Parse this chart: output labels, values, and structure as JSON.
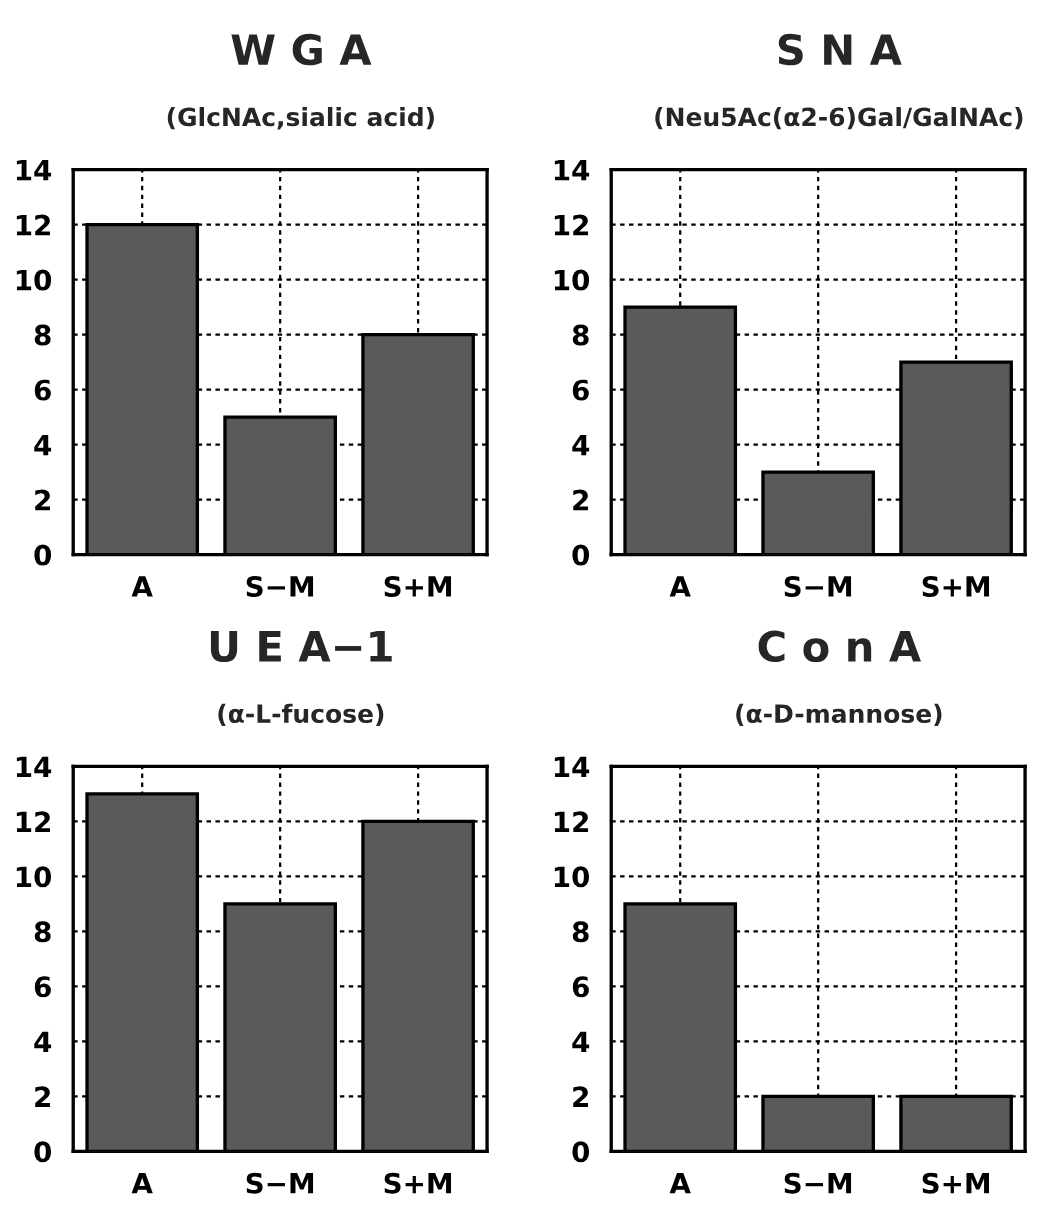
{
  "chart_data": [
    {
      "type": "bar",
      "title": "W G A",
      "subtitle": "(GlcNAc,sialic acid)",
      "categories": [
        "A",
        "S−M",
        "S+M"
      ],
      "values": [
        12,
        5,
        8
      ],
      "color": "#5a5a5a",
      "ylim": [
        0,
        14
      ],
      "yticks": [
        0,
        2,
        4,
        6,
        8,
        10,
        12,
        14
      ],
      "grid": true
    },
    {
      "type": "bar",
      "title": "S N A",
      "subtitle": "(Neu5Ac(α2-6)Gal/GalNAc)",
      "categories": [
        "A",
        "S−M",
        "S+M"
      ],
      "values": [
        9,
        3,
        7
      ],
      "color": "#5a5a5a",
      "ylim": [
        0,
        14
      ],
      "yticks": [
        0,
        2,
        4,
        6,
        8,
        10,
        12,
        14
      ],
      "grid": true
    },
    {
      "type": "bar",
      "title": "U E A−1",
      "subtitle": "(α-L-fucose)",
      "categories": [
        "A",
        "S−M",
        "S+M"
      ],
      "values": [
        13,
        9,
        12
      ],
      "color": "#5a5a5a",
      "ylim": [
        0,
        14
      ],
      "yticks": [
        0,
        2,
        4,
        6,
        8,
        10,
        12,
        14
      ],
      "grid": true
    },
    {
      "type": "bar",
      "title": "C o n A",
      "subtitle": "(α-D-mannose)",
      "categories": [
        "A",
        "S−M",
        "S+M"
      ],
      "values": [
        9,
        2,
        2
      ],
      "color": "#5a5a5a",
      "ylim": [
        0,
        14
      ],
      "yticks": [
        0,
        2,
        4,
        6,
        8,
        10,
        12,
        14
      ],
      "grid": true
    }
  ]
}
